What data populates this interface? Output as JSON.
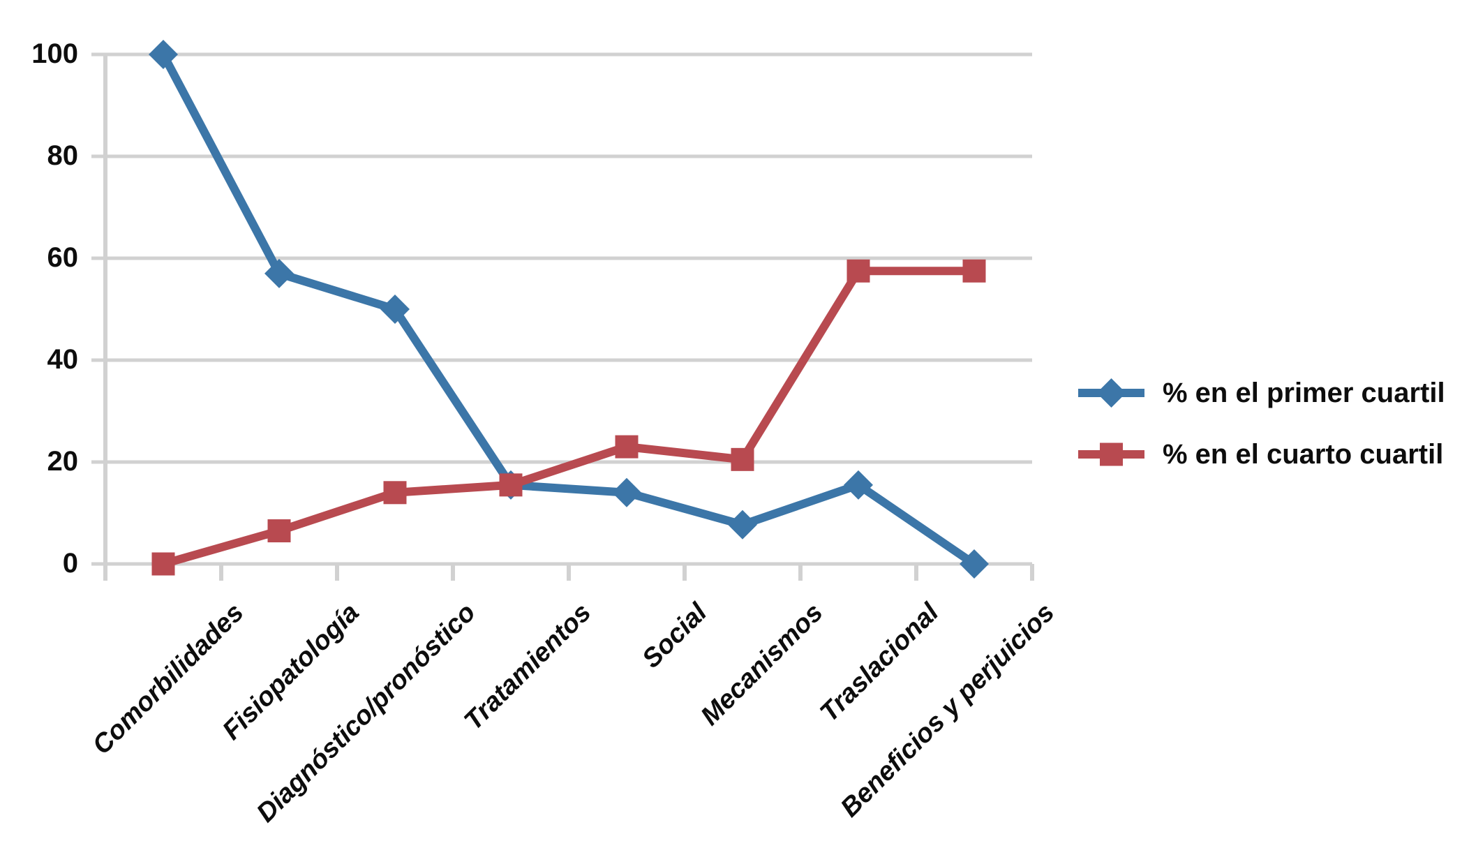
{
  "chart_data": {
    "type": "line",
    "title": "",
    "categories": [
      "Comorbilidades",
      "Fisiopatología",
      "Diagnóstico/pronóstico",
      "Tratamientos",
      "Social",
      "Mecanismos",
      "Traslacional",
      "Beneficios y perjuicios"
    ],
    "series": [
      {
        "name": "% en el primer cuartil",
        "marker": "diamond",
        "color": "#3C76A8",
        "values": [
          100,
          57,
          50,
          15.5,
          14,
          7.7,
          15.5,
          0
        ]
      },
      {
        "name": "% en el cuarto cuartil",
        "marker": "square",
        "color": "#B84A50",
        "values": [
          0,
          6.5,
          14,
          15.5,
          23,
          20.5,
          57.5,
          57.5
        ]
      }
    ],
    "y_axis": {
      "ticks": [
        0,
        20,
        40,
        60,
        80,
        100
      ],
      "min": 0,
      "max": 100
    },
    "grid": "horizontal",
    "legend_position": "right-middle",
    "colors": {
      "gridline": "#D1D1D1",
      "axis": "#D1D1D1",
      "text": "#0D0D0D",
      "background": "#FFFFFF"
    }
  }
}
